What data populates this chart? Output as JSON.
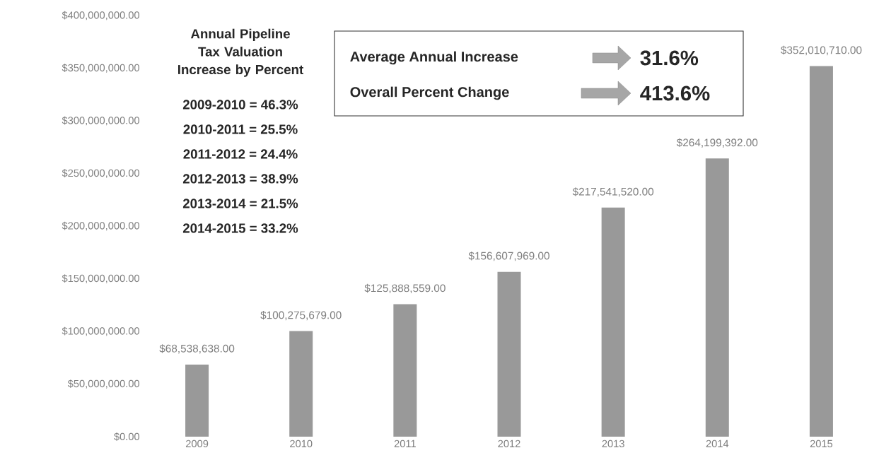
{
  "chart_data": {
    "type": "bar",
    "categories": [
      "2009",
      "2010",
      "2011",
      "2012",
      "2013",
      "2014",
      "2015"
    ],
    "values": [
      68538638,
      100275679,
      125888559,
      156607969,
      217541520,
      264199392,
      352010710
    ],
    "value_labels": [
      "$68,538,638.00",
      "$100,275,679.00",
      "$125,888,559.00",
      "$156,607,969.00",
      "$217,541,520.00",
      "$264,199,392.00",
      "$352,010,710.00"
    ],
    "color": "#999999",
    "ylim": [
      0,
      400000000
    ],
    "yticks": [
      {
        "value": 0,
        "label": "$0.00"
      },
      {
        "value": 50000000,
        "label": "$50,000,000.00"
      },
      {
        "value": 100000000,
        "label": "$100,000,000.00"
      },
      {
        "value": 150000000,
        "label": "$150,000,000.00"
      },
      {
        "value": 200000000,
        "label": "$200,000,000.00"
      },
      {
        "value": 250000000,
        "label": "$250,000,000.00"
      },
      {
        "value": 300000000,
        "label": "$300,000,000.00"
      },
      {
        "value": 350000000,
        "label": "$350,000,000.00"
      },
      {
        "value": 400000000,
        "label": "$400,000,000.00"
      }
    ],
    "grid": false,
    "annotations": [
      "Annual Pipeline Tax Valuation Increase by Percent",
      "2009-2010 = 46.3%",
      "2010-2011 = 25.5%",
      "2011-2012 = 24.4%",
      "2012-2013 = 38.9%",
      "2013-2014 = 21.5%",
      "2014-2015 = 33.2%",
      "Average Annual Increase",
      "31.6%",
      "Overall Percent Change",
      "413.6%"
    ]
  }
}
